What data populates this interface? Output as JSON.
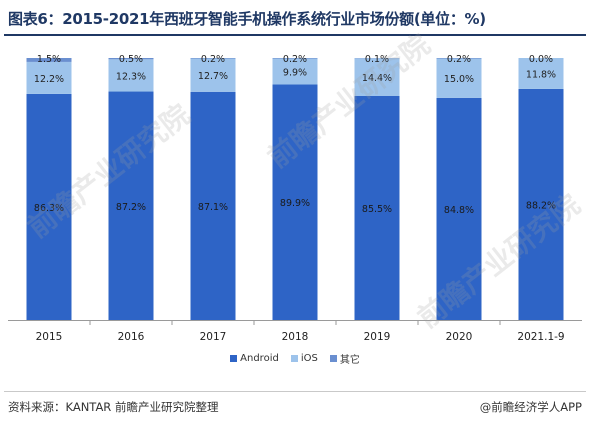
{
  "title": "图表6：2015-2021年西班牙智能手机操作系统行业市场份额(单位：%)",
  "source": "资料来源：KANTAR 前瞻产业研究院整理",
  "brand": "@前瞻经济学人APP",
  "watermark": "前瞻产业研究院",
  "colors": {
    "android": "#2e64c6",
    "ios": "#9dc3eb",
    "other": "#6a8fd0",
    "title": "#1f3864"
  },
  "chart_data": {
    "type": "bar",
    "stacked": true,
    "percent": true,
    "categories": [
      "2015",
      "2016",
      "2017",
      "2018",
      "2019",
      "2020",
      "2021.1-9"
    ],
    "series": [
      {
        "name": "Android",
        "values": [
          86.3,
          87.2,
          87.1,
          89.9,
          85.5,
          84.8,
          88.2
        ]
      },
      {
        "name": "iOS",
        "values": [
          12.2,
          12.3,
          12.7,
          9.9,
          14.4,
          15.0,
          11.8
        ]
      },
      {
        "name": "其它",
        "values": [
          1.5,
          0.5,
          0.2,
          0.2,
          0.1,
          0.2,
          0.0
        ]
      }
    ],
    "ylim": [
      0,
      100
    ],
    "grid": false,
    "legend": "bottom"
  }
}
